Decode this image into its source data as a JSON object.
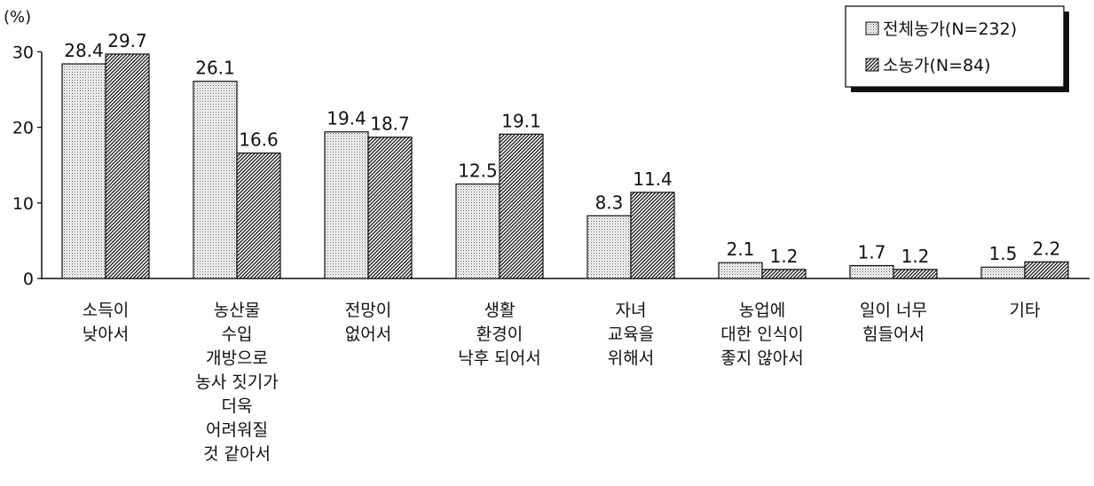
{
  "chart_data": {
    "type": "bar",
    "ylabel": "(%)",
    "ylim": [
      0,
      30
    ],
    "yticks": [
      0,
      10,
      20,
      30
    ],
    "grid": false,
    "legend_position": "top-right",
    "categories": [
      [
        "소득이",
        "낮아서"
      ],
      [
        "농산물",
        "수입",
        "개방으로",
        "농사 짓기가",
        "더욱",
        "어려워질",
        "것 같아서"
      ],
      [
        "전망이",
        "없어서"
      ],
      [
        "생활",
        "환경이",
        "낙후 되어서"
      ],
      [
        "자녀",
        "교육을",
        "위해서"
      ],
      [
        "농업에",
        "대한 인식이",
        "좋지 않아서"
      ],
      [
        "일이 너무",
        "힘들어서"
      ],
      [
        "기타"
      ]
    ],
    "series": [
      {
        "name": "전체농가(N=232)",
        "pattern": "dotted",
        "values": [
          28.4,
          26.1,
          19.4,
          12.5,
          8.3,
          2.1,
          1.7,
          1.5
        ],
        "labels": [
          "28.4",
          "26.1",
          "19.4",
          "12.5",
          "8.3",
          "2.1",
          "1.7",
          "1.5"
        ]
      },
      {
        "name": "소농가(N=84)",
        "pattern": "hatched",
        "values": [
          29.7,
          16.6,
          18.7,
          19.1,
          11.4,
          1.2,
          1.2,
          2.2
        ],
        "labels": [
          "29.7",
          "16.6",
          "18.7",
          "19.1",
          "11.4",
          "1.2",
          "1.2",
          "2.2"
        ]
      }
    ]
  }
}
